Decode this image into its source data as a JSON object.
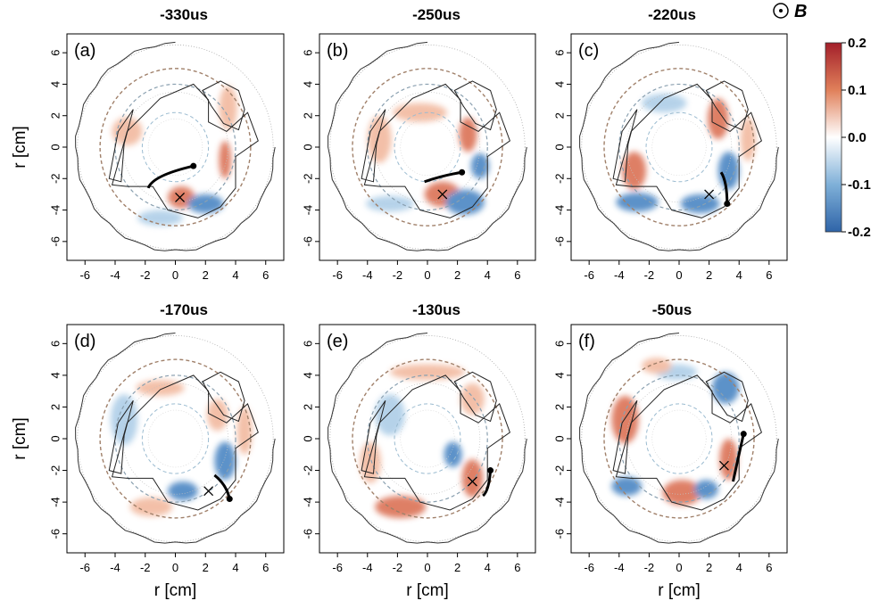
{
  "panels": [
    {
      "title": "-330us",
      "label": "(a)"
    },
    {
      "title": "-250us",
      "label": "(b)"
    },
    {
      "title": "-220us",
      "label": "(c)"
    },
    {
      "title": "-170us",
      "label": "(d)"
    },
    {
      "title": "-130us",
      "label": "(e)"
    },
    {
      "title": "-50us",
      "label": "(f)"
    }
  ],
  "axes": {
    "xlabel": "r [cm]",
    "ylabel": "r [cm]",
    "xticks": [
      "-6",
      "-4",
      "-2",
      "0",
      "2",
      "4",
      "6"
    ],
    "yticks": [
      "6",
      "4",
      "2",
      "0",
      "-2",
      "-4",
      "-6"
    ]
  },
  "colorbar": {
    "ticks": [
      "0.2",
      "0.1",
      "0.0",
      "-0.1",
      "-0.2"
    ],
    "colors": {
      "max": "#a31f2a",
      "mid": "#ffffff",
      "min": "#2f64a8"
    }
  },
  "field": {
    "symbol": "B"
  }
}
